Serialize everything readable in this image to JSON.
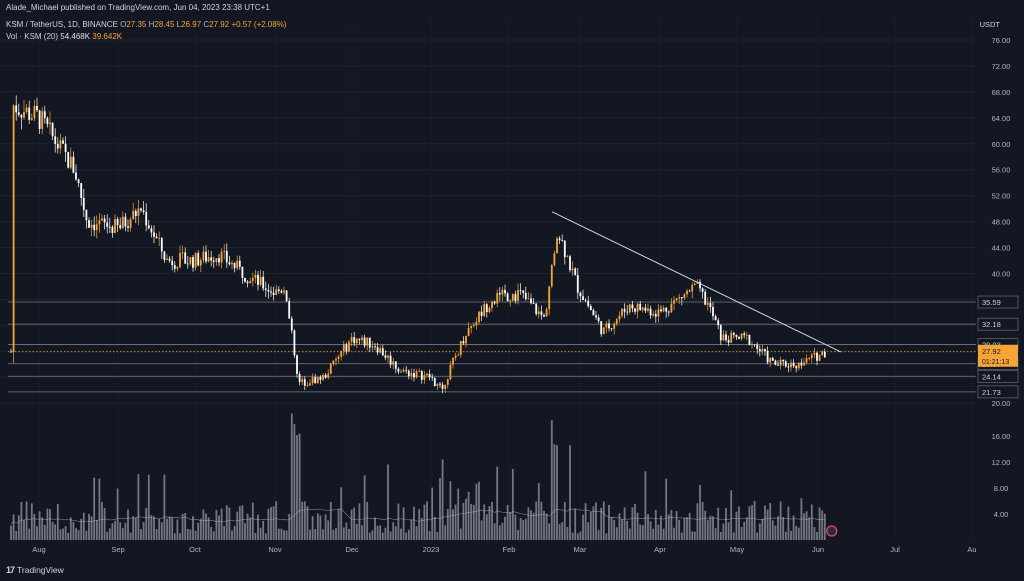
{
  "header": {
    "published": "Alade_Michael published on TradingView.com, Jun 04, 2023 23:38 UTC+1",
    "symbol": "KSM / TetherUS, 1D, BINANCE",
    "ohlc": {
      "o_label": "O",
      "o": "27.35",
      "h_label": "H",
      "h": "28.45",
      "l_label": "L",
      "l": "26.97",
      "c_label": "C",
      "c": "27.92",
      "change": "+0.57 (+2.08%)"
    },
    "volume": {
      "label": "Vol · KSM (20)",
      "v1": "54.468K",
      "v2": "39.642K"
    }
  },
  "currency": "USDT",
  "footer": {
    "brand": "TradingView",
    "logo": "17"
  },
  "colors": {
    "background": "#131722",
    "candle_up": "#f7a436",
    "candle_down": "#ffffff",
    "trendline": "#d1d4dc",
    "level_line": "#787b86",
    "current_price_bg": "#f7a436",
    "volume_bar": "#9598a1"
  },
  "price_labels": [
    "76.00",
    "72.00",
    "68.00",
    "64.00",
    "60.00",
    "56.00",
    "52.00",
    "48.00",
    "44.00",
    "40.00",
    "36.00",
    "32.00",
    "28.00",
    "24.00",
    "20.00"
  ],
  "level_labels": [
    {
      "value": 35.59,
      "label": "35.59"
    },
    {
      "value": 32.18,
      "label": "32.18"
    },
    {
      "value": 29.03,
      "label": "29.03"
    },
    {
      "value": 26.07,
      "label": "26.07"
    },
    {
      "value": 24.14,
      "label": "24.14"
    },
    {
      "value": 21.73,
      "label": "21.73"
    }
  ],
  "current_price": {
    "value": 27.92,
    "label": "27.92",
    "countdown": "01:21:13"
  },
  "volume_labels": [
    "16.00",
    "12.00",
    "8.00",
    "4.00"
  ],
  "time_labels": [
    "Aug",
    "Sep",
    "Oct",
    "Nov",
    "Dec",
    "2023",
    "Feb",
    "Mar",
    "Apr",
    "May",
    "Jun",
    "Jul",
    "Au"
  ],
  "chart_data": {
    "type": "candlestick",
    "symbol": "KSM / TetherUS",
    "interval": "1D",
    "y_unit": "USDT",
    "ylim": [
      19.4,
      79.4
    ],
    "volume_ylim": [
      0,
      20
    ],
    "volume_unit": "K",
    "approx_close_path": [
      {
        "date": "Jul 20",
        "close": 66
      },
      {
        "date": "Aug 01",
        "close": 64
      },
      {
        "date": "Aug 15",
        "close": 56
      },
      {
        "date": "Aug 20",
        "close": 48
      },
      {
        "date": "Sep 01",
        "close": 47
      },
      {
        "date": "Sep 10",
        "close": 50
      },
      {
        "date": "Sep 20",
        "close": 42
      },
      {
        "date": "Oct 01",
        "close": 42
      },
      {
        "date": "Oct 10",
        "close": 43
      },
      {
        "date": "Oct 20",
        "close": 40
      },
      {
        "date": "Nov 01",
        "close": 37
      },
      {
        "date": "Nov 05",
        "close": 38
      },
      {
        "date": "Nov 10",
        "close": 23
      },
      {
        "date": "Nov 20",
        "close": 24
      },
      {
        "date": "Dec 01",
        "close": 30
      },
      {
        "date": "Dec 10",
        "close": 29
      },
      {
        "date": "Dec 20",
        "close": 25
      },
      {
        "date": "Jan 01",
        "close": 24
      },
      {
        "date": "Jan 05",
        "close": 22
      },
      {
        "date": "Jan 15",
        "close": 31
      },
      {
        "date": "Jan 25",
        "close": 36
      },
      {
        "date": "Feb 05",
        "close": 37
      },
      {
        "date": "Feb 15",
        "close": 33
      },
      {
        "date": "Feb 20",
        "close": 47
      },
      {
        "date": "Feb 28",
        "close": 38
      },
      {
        "date": "Mar 10",
        "close": 31
      },
      {
        "date": "Mar 20",
        "close": 35
      },
      {
        "date": "Apr 01",
        "close": 34
      },
      {
        "date": "Apr 15",
        "close": 38
      },
      {
        "date": "Apr 20",
        "close": 35
      },
      {
        "date": "Apr 25",
        "close": 30
      },
      {
        "date": "May 05",
        "close": 30
      },
      {
        "date": "May 15",
        "close": 26
      },
      {
        "date": "May 25",
        "close": 26
      },
      {
        "date": "Jun 04",
        "close": 27.92
      }
    ],
    "trendline": {
      "from": {
        "date": "Feb 18",
        "price": 49.5
      },
      "to": {
        "date": "Jun 06",
        "price": 28.2
      }
    },
    "horizontal_levels": [
      35.59,
      32.18,
      29.03,
      26.07,
      24.14,
      21.73
    ]
  }
}
